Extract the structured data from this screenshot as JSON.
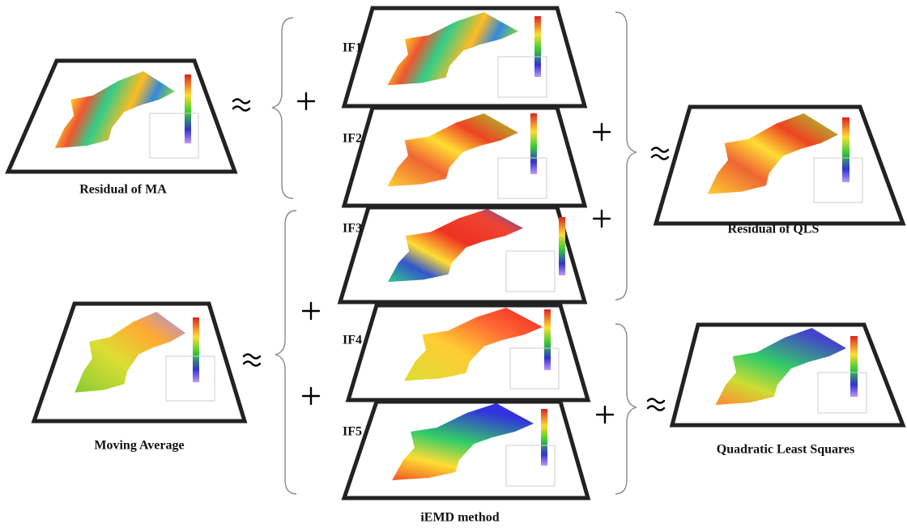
{
  "left": {
    "residual_ma": "Residual of MA",
    "moving_average": "Moving Average"
  },
  "middle": {
    "components": [
      "IF1",
      "IF2",
      "IF3",
      "IF4",
      "IF5"
    ],
    "caption": "iEMD method"
  },
  "right": {
    "residual_qls": "Residual of QLS",
    "qls": "Quadratic Least Squares"
  }
}
